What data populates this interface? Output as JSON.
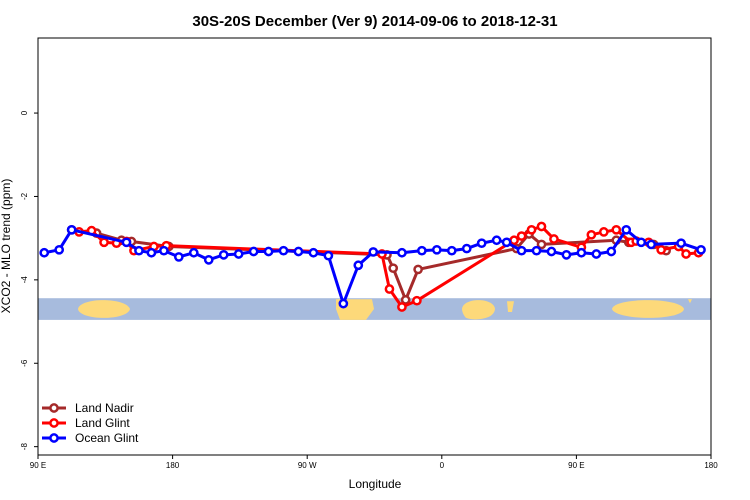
{
  "chart_data": {
    "type": "line",
    "title": "30S-20S December (Ver 9)   2014-09-06 to 2018-12-31",
    "xlabel": "Longitude",
    "ylabel": "XCO2 - MLO trend (ppm)",
    "xlim": [
      -90,
      180
    ],
    "ylim": [
      -8.2,
      1.8
    ],
    "x_ticks": [
      {
        "value": -90,
        "label": "90 E"
      },
      {
        "value": -36,
        "label": "180"
      },
      {
        "value": 18,
        "label": "90 W"
      },
      {
        "value": 72,
        "label": "0"
      },
      {
        "value": 126,
        "label": "90 E"
      },
      {
        "value": 180,
        "label": "180"
      }
    ],
    "y_ticks": [
      {
        "value": 0,
        "label": "0"
      },
      {
        "value": -2,
        "label": "-2"
      },
      {
        "value": -4,
        "label": "-4"
      },
      {
        "value": -6,
        "label": "-6"
      },
      {
        "value": -8,
        "label": "-8"
      }
    ],
    "legend_position": "bottom-left",
    "map_band": {
      "y_top": -4.44,
      "y_bottom": -4.96,
      "ocean_color": "#a7bbdd",
      "land_color": "#fdd97a"
    },
    "series": [
      {
        "name": "Land Nadir",
        "color": "#a52a2a",
        "x": [
          -76.5,
          -66.5,
          -56.5,
          -52.5,
          -37.5,
          50,
          52.5,
          57.5,
          62.5,
          102,
          107,
          112,
          142,
          147,
          157,
          162
        ],
        "y": [
          -2.8,
          -2.88,
          -3.05,
          -3.08,
          -3.2,
          -3.4,
          -3.72,
          -4.48,
          -3.75,
          -3.25,
          -2.9,
          -3.15,
          -3.05,
          -3.1,
          -3.15,
          -3.3
        ]
      },
      {
        "name": "Land Glint",
        "color": "#ff0000",
        "x": [
          -73.5,
          -68.5,
          -63.5,
          -58.5,
          -54.5,
          -51.5,
          -43.5,
          -38.5,
          48,
          51,
          56,
          62,
          101,
          104,
          108,
          112,
          117,
          128,
          132,
          137,
          142,
          148,
          150,
          155,
          160,
          167,
          170,
          175
        ],
        "y": [
          -2.85,
          -2.82,
          -3.1,
          -3.12,
          -3.08,
          -3.3,
          -3.2,
          -3.18,
          -3.38,
          -4.22,
          -4.65,
          -4.5,
          -3.05,
          -2.95,
          -2.8,
          -2.72,
          -3.02,
          -3.22,
          -2.92,
          -2.85,
          -2.8,
          -3.1,
          -3.07,
          -3.1,
          -3.28,
          -3.2,
          -3.38,
          -3.35
        ]
      },
      {
        "name": "Ocean Glint",
        "color": "#0000ff",
        "x": [
          -87.5,
          -81.5,
          -76.5,
          -54.5,
          -49.5,
          -44.5,
          -39.5,
          -33.5,
          -27.5,
          -21.5,
          -15.5,
          -9.5,
          -3.5,
          2.5,
          8.5,
          14.5,
          20.5,
          26.5,
          32.5,
          38.5,
          44.5,
          56,
          64,
          70,
          76,
          82,
          88,
          94,
          98,
          104,
          110,
          116,
          122,
          128,
          134,
          140,
          146,
          152,
          156,
          168,
          176,
          182,
          190
        ],
        "y": [
          -3.35,
          -3.28,
          -2.8,
          -3.1,
          -3.3,
          -3.35,
          -3.3,
          -3.45,
          -3.35,
          -3.52,
          -3.4,
          -3.38,
          -3.32,
          -3.32,
          -3.3,
          -3.32,
          -3.35,
          -3.42,
          -4.57,
          -3.65,
          -3.33,
          -3.35,
          -3.3,
          -3.28,
          -3.3,
          -3.25,
          -3.12,
          -3.05,
          -3.1,
          -3.3,
          -3.3,
          -3.32,
          -3.4,
          -3.35,
          -3.38,
          -3.32,
          -2.8,
          -3.1,
          -3.15,
          -3.12,
          -3.28,
          -3.35,
          -3.38
        ]
      }
    ]
  }
}
